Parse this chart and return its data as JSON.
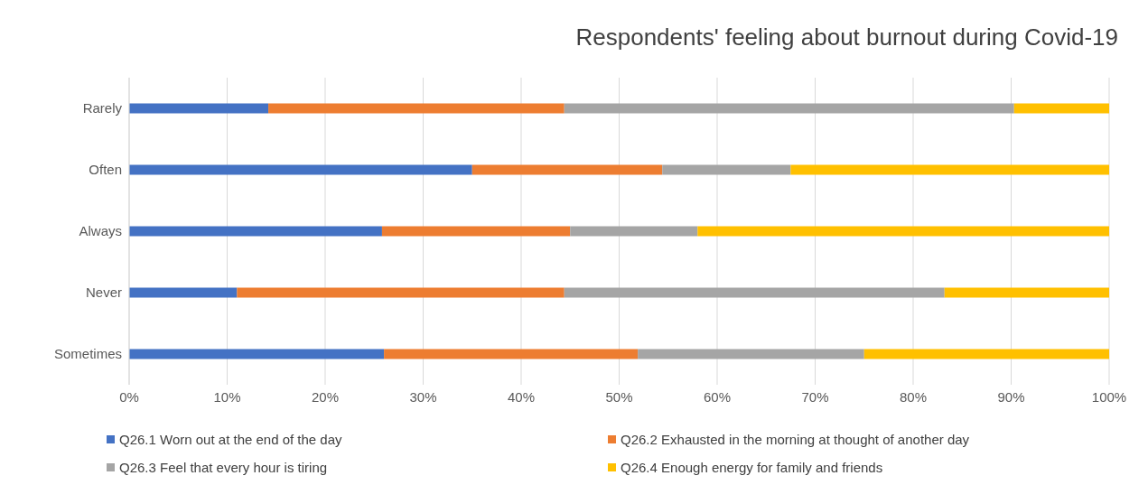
{
  "chart_data": {
    "type": "bar",
    "orientation": "horizontal",
    "stacked": true,
    "title": "Respondents' feeling about burnout during Covid-19",
    "categories": [
      "Rarely",
      "Often",
      "Always",
      "Never",
      "Sometimes"
    ],
    "series": [
      {
        "name": "Q26.1 Worn out at the end of the day",
        "color": "#4472c4",
        "values": [
          14.2,
          35.0,
          25.8,
          11.0,
          26.0
        ]
      },
      {
        "name": "Q26.2 Exhausted in the morning at thought of another day",
        "color": "#ed7d31",
        "values": [
          30.2,
          19.4,
          19.2,
          33.4,
          25.9
        ]
      },
      {
        "name": "Q26.3 Feel that every hour is tiring",
        "color": "#a5a5a5",
        "values": [
          45.9,
          13.1,
          13.0,
          38.8,
          23.1
        ]
      },
      {
        "name": "Q26.4 Enough energy for family and friends",
        "color": "#ffc000",
        "values": [
          9.7,
          32.5,
          42.0,
          16.8,
          25.0
        ]
      }
    ],
    "xlim": [
      0,
      100
    ],
    "xticks": [
      {
        "value": 0,
        "label": "0%"
      },
      {
        "value": 10,
        "label": "10%"
      },
      {
        "value": 20,
        "label": "20%"
      },
      {
        "value": 30,
        "label": "30%"
      },
      {
        "value": 40,
        "label": "40%"
      },
      {
        "value": 50,
        "label": "50%"
      },
      {
        "value": 60,
        "label": "60%"
      },
      {
        "value": 70,
        "label": "70%"
      },
      {
        "value": 80,
        "label": "80%"
      },
      {
        "value": 90,
        "label": "90%"
      },
      {
        "value": 100,
        "label": "100%"
      }
    ],
    "grid": "x",
    "legend": "bottom"
  }
}
